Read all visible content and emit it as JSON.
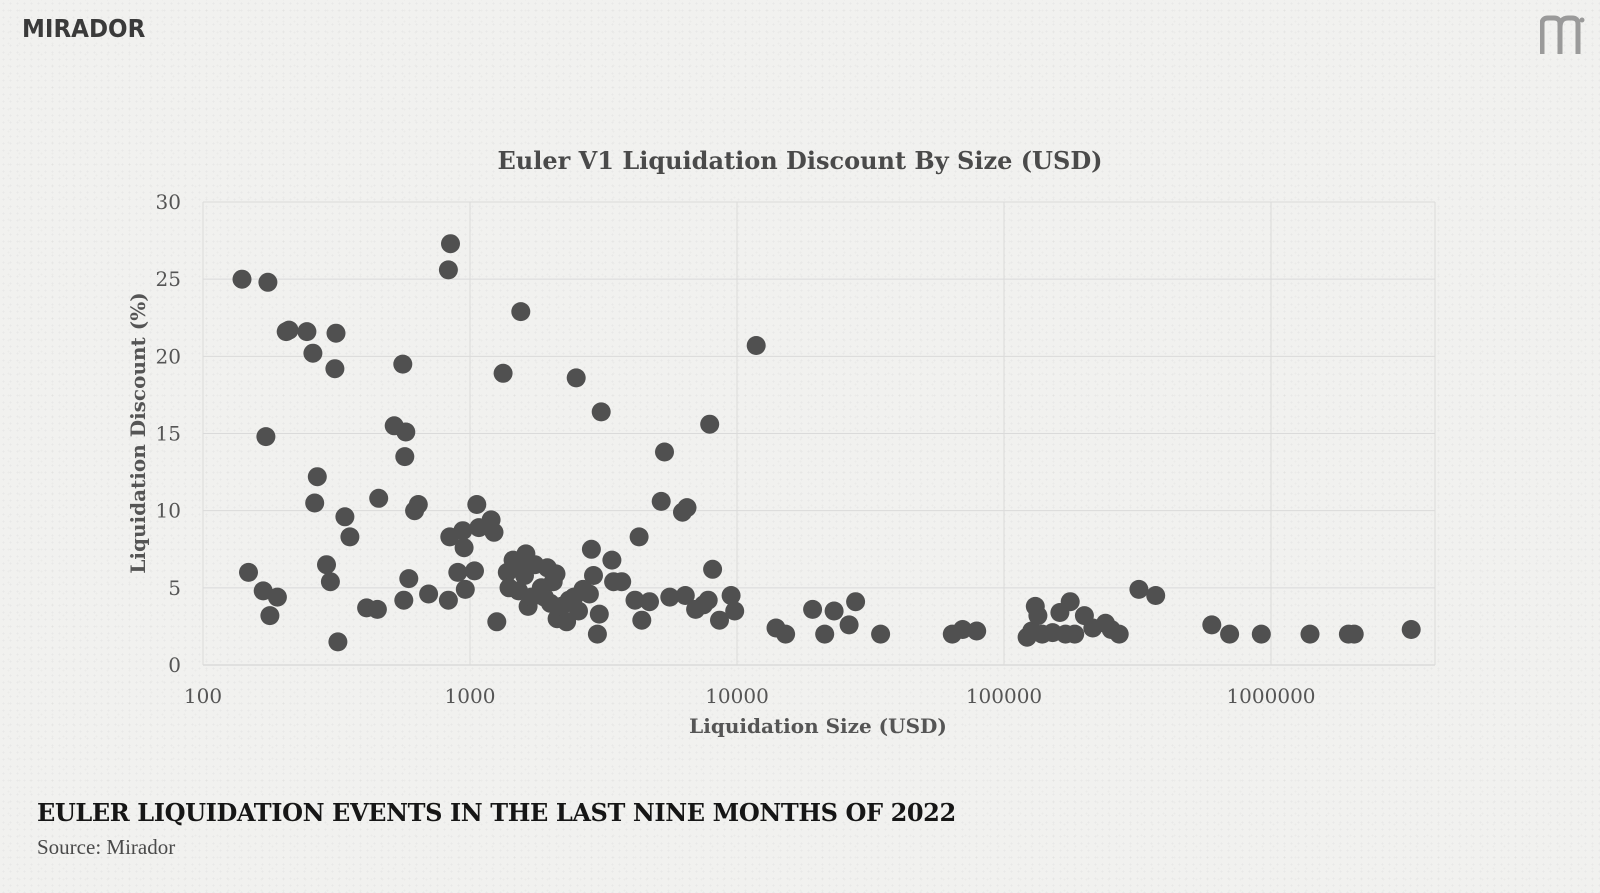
{
  "branding": {
    "logo_text": "MIRADOR",
    "logo_mark": "mirador-m-icon"
  },
  "colors": {
    "point": "#505050",
    "grid": "#dadada",
    "axis_text": "#555555",
    "title_text": "#4a4a4a"
  },
  "chart_data": {
    "type": "scatter",
    "title": "Euler V1 Liquidation Discount By Size (USD)",
    "xlabel": "Liquidation Size (USD)",
    "ylabel": "Liquidation Discount (%)",
    "x_scale": "log",
    "xlim": [
      100,
      5000000
    ],
    "ylim": [
      0,
      30
    ],
    "x_ticks": [
      "100",
      "1000",
      "10000",
      "100000",
      "1000000"
    ],
    "y_ticks": [
      "0",
      "5",
      "10",
      "15",
      "20",
      "25",
      "30"
    ],
    "grid": true,
    "legend": "none",
    "points": [
      [
        140,
        25.0
      ],
      [
        175,
        24.8
      ],
      [
        205,
        21.6
      ],
      [
        210,
        21.7
      ],
      [
        245,
        21.6
      ],
      [
        258,
        20.2
      ],
      [
        315,
        21.5
      ],
      [
        312,
        19.2
      ],
      [
        172,
        14.8
      ],
      [
        268,
        12.2
      ],
      [
        262,
        10.5
      ],
      [
        340,
        9.6
      ],
      [
        355,
        8.3
      ],
      [
        148,
        6.0
      ],
      [
        168,
        4.8
      ],
      [
        190,
        4.4
      ],
      [
        178,
        3.2
      ],
      [
        290,
        6.5
      ],
      [
        300,
        5.4
      ],
      [
        320,
        1.5
      ],
      [
        410,
        3.7
      ],
      [
        450,
        3.6
      ],
      [
        455,
        10.8
      ],
      [
        520,
        15.5
      ],
      [
        560,
        19.5
      ],
      [
        570,
        13.5
      ],
      [
        575,
        15.1
      ],
      [
        565,
        4.2
      ],
      [
        590,
        5.6
      ],
      [
        620,
        10.0
      ],
      [
        640,
        10.4
      ],
      [
        700,
        4.6
      ],
      [
        830,
        4.2
      ],
      [
        840,
        8.3
      ],
      [
        830,
        25.6
      ],
      [
        845,
        27.3
      ],
      [
        900,
        6.0
      ],
      [
        940,
        8.7
      ],
      [
        950,
        7.6
      ],
      [
        960,
        4.9
      ],
      [
        1040,
        6.1
      ],
      [
        1060,
        10.4
      ],
      [
        1080,
        8.9
      ],
      [
        1200,
        9.4
      ],
      [
        1230,
        8.6
      ],
      [
        1260,
        2.8
      ],
      [
        1330,
        18.9
      ],
      [
        1380,
        6.0
      ],
      [
        1400,
        5.0
      ],
      [
        1450,
        6.8
      ],
      [
        1520,
        4.8
      ],
      [
        1550,
        22.9
      ],
      [
        1580,
        6.5
      ],
      [
        1600,
        5.8
      ],
      [
        1620,
        7.2
      ],
      [
        1650,
        3.8
      ],
      [
        1700,
        4.4
      ],
      [
        1750,
        6.5
      ],
      [
        1850,
        5.0
      ],
      [
        1900,
        4.4
      ],
      [
        1950,
        6.3
      ],
      [
        2000,
        4.0
      ],
      [
        2050,
        5.4
      ],
      [
        2100,
        5.9
      ],
      [
        2120,
        3.0
      ],
      [
        2200,
        3.8
      ],
      [
        2300,
        2.8
      ],
      [
        2350,
        4.2
      ],
      [
        2450,
        4.4
      ],
      [
        2500,
        18.6
      ],
      [
        2550,
        3.5
      ],
      [
        2650,
        4.9
      ],
      [
        2800,
        4.6
      ],
      [
        2850,
        7.5
      ],
      [
        2900,
        5.8
      ],
      [
        3000,
        2.0
      ],
      [
        3050,
        3.3
      ],
      [
        3100,
        16.4
      ],
      [
        3400,
        6.8
      ],
      [
        3450,
        5.4
      ],
      [
        3700,
        5.4
      ],
      [
        4150,
        4.2
      ],
      [
        4300,
        8.3
      ],
      [
        4400,
        2.9
      ],
      [
        4700,
        4.1
      ],
      [
        5200,
        10.6
      ],
      [
        5350,
        13.8
      ],
      [
        5600,
        4.4
      ],
      [
        6250,
        9.9
      ],
      [
        6400,
        4.5
      ],
      [
        6500,
        10.2
      ],
      [
        7000,
        3.6
      ],
      [
        7500,
        3.9
      ],
      [
        7800,
        4.2
      ],
      [
        7900,
        15.6
      ],
      [
        8100,
        6.2
      ],
      [
        8600,
        2.9
      ],
      [
        9500,
        4.5
      ],
      [
        9800,
        3.5
      ],
      [
        11800,
        20.7
      ],
      [
        14000,
        2.4
      ],
      [
        15200,
        2.0
      ],
      [
        19200,
        3.6
      ],
      [
        21300,
        2.0
      ],
      [
        23100,
        3.5
      ],
      [
        26300,
        2.6
      ],
      [
        27800,
        4.1
      ],
      [
        34500,
        2.0
      ],
      [
        64000,
        2.0
      ],
      [
        70000,
        2.3
      ],
      [
        79000,
        2.2
      ],
      [
        122000,
        1.8
      ],
      [
        127000,
        2.2
      ],
      [
        131000,
        3.8
      ],
      [
        134000,
        3.2
      ],
      [
        139000,
        2.0
      ],
      [
        152000,
        2.1
      ],
      [
        162000,
        3.4
      ],
      [
        170000,
        2.0
      ],
      [
        177000,
        4.1
      ],
      [
        184000,
        2.0
      ],
      [
        200000,
        3.2
      ],
      [
        215000,
        2.4
      ],
      [
        240000,
        2.7
      ],
      [
        252000,
        2.3
      ],
      [
        270000,
        2.0
      ],
      [
        320000,
        4.9
      ],
      [
        370000,
        4.5
      ],
      [
        600000,
        2.6
      ],
      [
        700000,
        2.0
      ],
      [
        920000,
        2.0
      ],
      [
        1400000,
        2.0
      ],
      [
        1950000,
        2.0
      ],
      [
        2050000,
        2.0
      ],
      [
        3350000,
        2.3
      ]
    ]
  },
  "footer": {
    "title": "EULER LIQUIDATION EVENTS IN THE LAST NINE MONTHS OF 2022",
    "source": "Source: Mirador"
  }
}
